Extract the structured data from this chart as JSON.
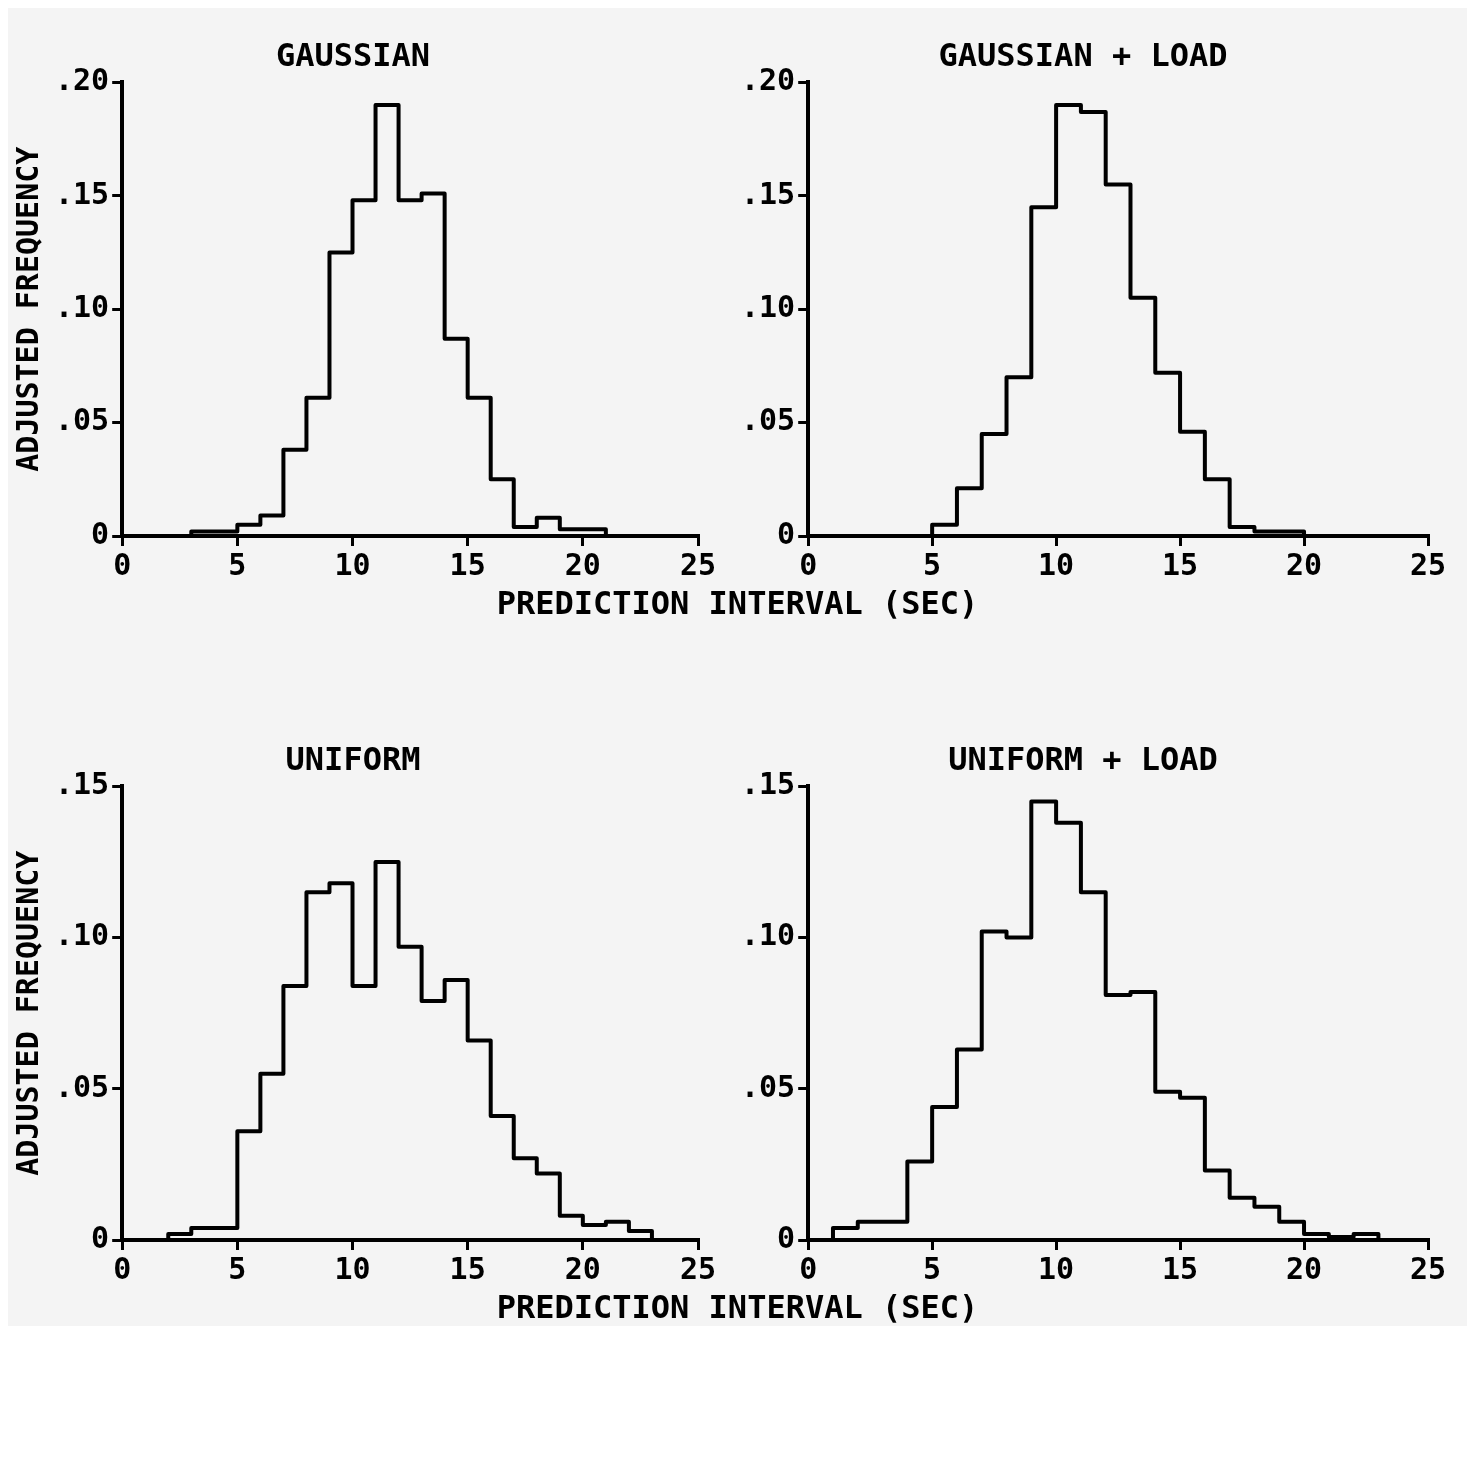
{
  "chart_data": [
    {
      "type": "histogram",
      "title": "GAUSSIAN",
      "ylabel": "ADJUSTED FREQUENCY",
      "xlabel": "PREDICTION INTERVAL (SEC)",
      "color": "#000000",
      "grid": false,
      "bins": [
        3,
        5,
        6,
        7,
        8,
        9,
        10,
        11,
        12,
        13,
        14,
        15,
        16,
        17,
        18,
        19,
        21
      ],
      "values": [
        0.002,
        0.005,
        0.009,
        0.038,
        0.061,
        0.125,
        0.148,
        0.19,
        0.148,
        0.151,
        0.087,
        0.061,
        0.025,
        0.004,
        0.008,
        0.003
      ],
      "xlim": [
        0,
        25
      ],
      "xticks": [
        0,
        5,
        10,
        15,
        20,
        25
      ],
      "ylim": [
        0,
        0.2
      ],
      "yticks": [
        {
          "value": 0,
          "label": "0"
        },
        {
          "value": 0.05,
          "label": ".05"
        },
        {
          "value": 0.1,
          "label": ".10"
        },
        {
          "value": 0.15,
          "label": ".15"
        },
        {
          "value": 0.2,
          "label": ".20"
        }
      ]
    },
    {
      "type": "histogram",
      "title": "GAUSSIAN + LOAD",
      "color": "#000000",
      "grid": false,
      "bins": [
        5,
        6,
        7,
        8,
        9,
        10,
        11,
        12,
        13,
        14,
        15,
        16,
        17,
        18,
        20
      ],
      "values": [
        0.005,
        0.021,
        0.045,
        0.07,
        0.145,
        0.19,
        0.187,
        0.155,
        0.105,
        0.072,
        0.046,
        0.025,
        0.004,
        0.002
      ],
      "xlim": [
        0,
        25
      ],
      "xticks": [
        0,
        5,
        10,
        15,
        20,
        25
      ],
      "ylim": [
        0,
        0.2
      ],
      "yticks": [
        {
          "value": 0,
          "label": "0"
        },
        {
          "value": 0.05,
          "label": ".05"
        },
        {
          "value": 0.1,
          "label": ".10"
        },
        {
          "value": 0.15,
          "label": ".15"
        },
        {
          "value": 0.2,
          "label": ".20"
        }
      ]
    },
    {
      "type": "histogram",
      "title": "UNIFORM",
      "ylabel": "ADJUSTED FREQUENCY",
      "xlabel": "PREDICTION INTERVAL (SEC)",
      "color": "#000000",
      "grid": false,
      "bins": [
        2,
        3,
        5,
        6,
        7,
        8,
        9,
        10,
        11,
        12,
        13,
        14,
        15,
        16,
        17,
        18,
        19,
        20,
        21,
        22,
        23
      ],
      "values": [
        0.002,
        0.004,
        0.036,
        0.055,
        0.084,
        0.115,
        0.118,
        0.084,
        0.125,
        0.097,
        0.079,
        0.086,
        0.066,
        0.041,
        0.027,
        0.022,
        0.008,
        0.005,
        0.006,
        0.003
      ],
      "xlim": [
        0,
        25
      ],
      "xticks": [
        0,
        5,
        10,
        15,
        20,
        25
      ],
      "ylim": [
        0,
        0.15
      ],
      "yticks": [
        {
          "value": 0,
          "label": "0"
        },
        {
          "value": 0.05,
          "label": ".05"
        },
        {
          "value": 0.1,
          "label": ".10"
        },
        {
          "value": 0.15,
          "label": ".15"
        }
      ]
    },
    {
      "type": "histogram",
      "title": "UNIFORM + LOAD",
      "color": "#000000",
      "grid": false,
      "bins": [
        1,
        2,
        4,
        5,
        6,
        7,
        8,
        9,
        10,
        11,
        12,
        13,
        14,
        15,
        16,
        17,
        18,
        19,
        20,
        21,
        22,
        23
      ],
      "values": [
        0.004,
        0.006,
        0.026,
        0.044,
        0.063,
        0.102,
        0.1,
        0.145,
        0.138,
        0.115,
        0.081,
        0.082,
        0.049,
        0.047,
        0.023,
        0.014,
        0.011,
        0.006,
        0.002,
        0.001,
        0.002
      ],
      "xlim": [
        0,
        25
      ],
      "xticks": [
        0,
        5,
        10,
        15,
        20,
        25
      ],
      "ylim": [
        0,
        0.15
      ],
      "yticks": [
        {
          "value": 0,
          "label": "0"
        },
        {
          "value": 0.05,
          "label": ".05"
        },
        {
          "value": 0.1,
          "label": ".10"
        },
        {
          "value": 0.15,
          "label": ".15"
        }
      ]
    }
  ]
}
